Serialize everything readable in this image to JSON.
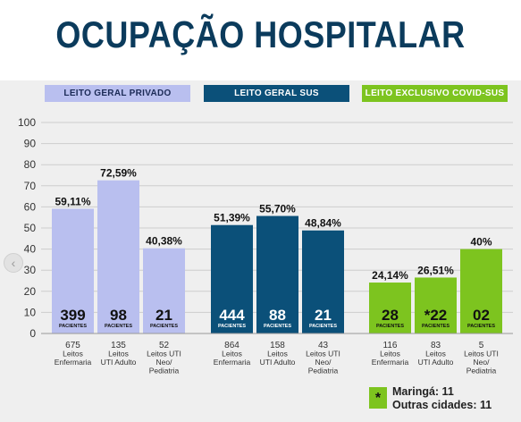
{
  "title": "OCUPAÇÃO HOSPITALAR",
  "colors": {
    "privado": "#b9bfef",
    "sus": "#0b5079",
    "covid": "#7dc41f",
    "title": "#0b3b5c"
  },
  "chart_data": {
    "type": "bar",
    "ylim": [
      0,
      100
    ],
    "yticks": [
      "0",
      "10",
      "20",
      "30",
      "40",
      "50",
      "60",
      "70",
      "80",
      "90",
      "100"
    ],
    "grid": true,
    "pacientes_label": "PACIENTES",
    "groups": [
      {
        "name": "LEITO GERAL PRIVADO",
        "color": "#b9bfef",
        "bars": [
          {
            "value": 59.11,
            "label": "59,11%",
            "patients": "399",
            "cat_lines": [
              "675",
              "Leitos",
              "Enfermaria"
            ]
          },
          {
            "value": 72.59,
            "label": "72,59%",
            "patients": "98",
            "cat_lines": [
              "135",
              "Leitos",
              "UTI Adulto"
            ]
          },
          {
            "value": 40.38,
            "label": "40,38%",
            "patients": "21",
            "cat_lines": [
              "52",
              "Leitos UTI",
              "Neo/",
              "Pediatria"
            ]
          }
        ]
      },
      {
        "name": "LEITO GERAL SUS",
        "color": "#0b5079",
        "bars": [
          {
            "value": 51.39,
            "label": "51,39%",
            "patients": "444",
            "cat_lines": [
              "864",
              "Leitos",
              "Enfermaria"
            ]
          },
          {
            "value": 55.7,
            "label": "55,70%",
            "patients": "88",
            "cat_lines": [
              "158",
              "Leitos",
              "UTI Adulto"
            ]
          },
          {
            "value": 48.84,
            "label": "48,84%",
            "patients": "21",
            "cat_lines": [
              "43",
              "Leitos UTI",
              "Neo/",
              "Pediatria"
            ]
          }
        ]
      },
      {
        "name": "LEITO EXCLUSIVO COVID-SUS",
        "color": "#7dc41f",
        "bars": [
          {
            "value": 24.14,
            "label": "24,14%",
            "patients": "28",
            "cat_lines": [
              "116",
              "Leitos",
              "Enfermaria"
            ]
          },
          {
            "value": 26.51,
            "label": "26,51%",
            "patients": "*22",
            "cat_lines": [
              "83",
              "Leitos",
              "UTI Adulto"
            ]
          },
          {
            "value": 40,
            "label": "40%",
            "patients": "02",
            "cat_lines": [
              "5",
              "Leitos UTI",
              "Neo/",
              "Pediatria"
            ]
          }
        ]
      }
    ]
  },
  "legend": {
    "marker": "*",
    "lines": [
      "Maringá: 11",
      "Outras cidades: 11"
    ]
  }
}
